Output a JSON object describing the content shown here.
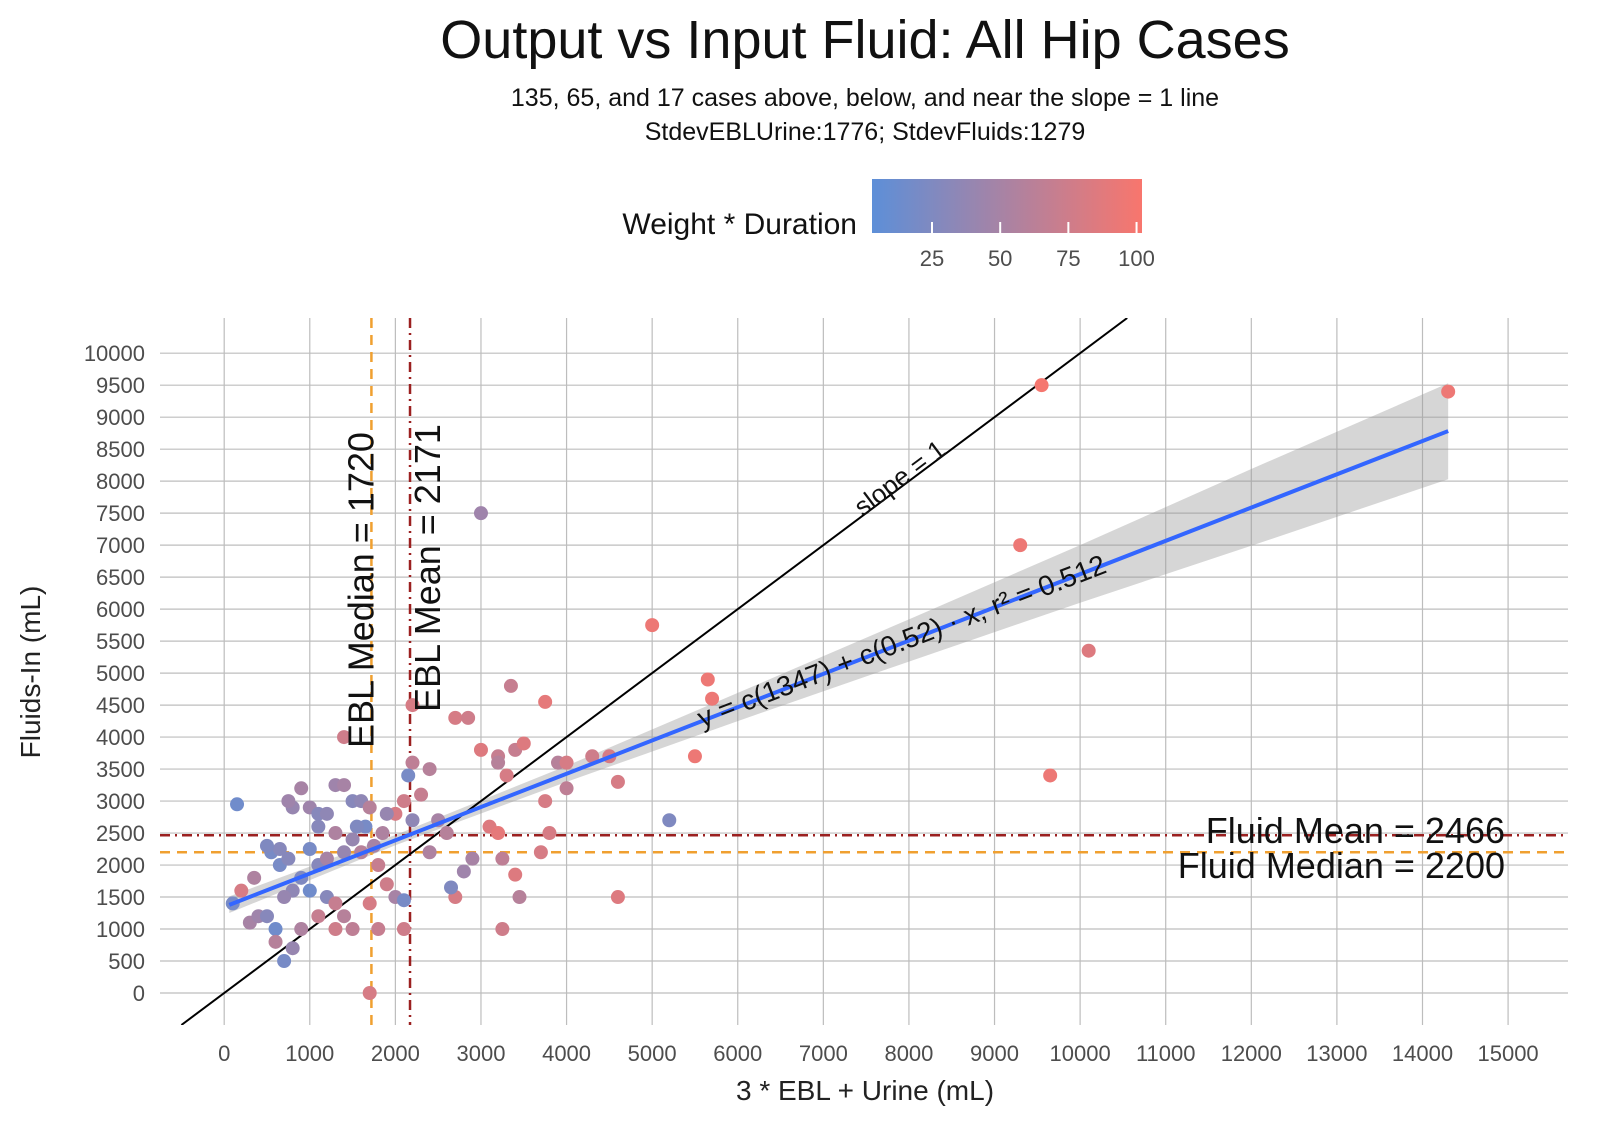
{
  "chart_data": {
    "type": "scatter",
    "title": "Output vs Input Fluid: All Hip Cases",
    "subtitle": [
      "135, 65, and 17 cases above, below, and near the slope = 1 line",
      "StdevEBLUrine:1776; StdevFluids:1279"
    ],
    "x_label": "3 * EBL + Urine (mL)",
    "y_label": "Fluids-In (mL)",
    "xlim": [
      -750,
      15700
    ],
    "ylim": [
      -500,
      10550
    ],
    "xticks": [
      0,
      1000,
      2000,
      3000,
      4000,
      5000,
      6000,
      7000,
      8000,
      9000,
      10000,
      11000,
      12000,
      13000,
      14000,
      15000
    ],
    "yticks": [
      0,
      500,
      1000,
      1500,
      2000,
      2500,
      3000,
      3500,
      4000,
      4500,
      5000,
      5500,
      6000,
      6500,
      7000,
      7500,
      8000,
      8500,
      9000,
      9500,
      10000
    ],
    "grid": true,
    "legend": {
      "title": "Weight * Duration",
      "position": "top",
      "clim": [
        3,
        102
      ],
      "ticks": [
        25,
        50,
        75,
        100
      ],
      "low_color": "#5d8fd8",
      "high_color": "#f8766d"
    },
    "points": {
      "x": [
        150,
        700,
        600,
        550,
        650,
        500,
        800,
        750,
        900,
        1000,
        1100,
        1200,
        1300,
        1400,
        1500,
        1600,
        1700,
        1650,
        1550,
        1300,
        1000,
        1100,
        900,
        800,
        700,
        1000,
        1200,
        1300,
        1400,
        1500,
        1300,
        1100,
        900,
        800,
        600,
        300,
        400,
        500,
        200,
        100,
        350,
        650,
        750,
        1200,
        1400,
        1600,
        1800,
        1900,
        2000,
        2100,
        1700,
        1800,
        2100,
        1700,
        1400,
        2000,
        2100,
        2300,
        2200,
        2150,
        2400,
        2200,
        2500,
        2600,
        2400,
        2700,
        2650,
        2800,
        2900,
        2700,
        2850,
        3000,
        3000,
        3200,
        3400,
        3500,
        3350,
        3300,
        3200,
        3100,
        3200,
        3250,
        3400,
        3450,
        3250,
        3750,
        3750,
        3800,
        3700,
        3900,
        4000,
        4000,
        4300,
        4500,
        4600,
        4600,
        5000,
        5200,
        5500,
        5650,
        5700,
        9300,
        9550,
        9650,
        10100,
        14300,
        1100,
        1500,
        1850,
        1900,
        2200,
        1750
      ],
      "y": [
        2950,
        500,
        1000,
        2200,
        2250,
        2300,
        2900,
        3000,
        3200,
        2900,
        2800,
        2800,
        3250,
        3250,
        3000,
        3000,
        2900,
        2600,
        2600,
        2500,
        2250,
        2000,
        1800,
        1600,
        1500,
        1600,
        1500,
        1400,
        1200,
        1000,
        1000,
        1200,
        1000,
        700,
        800,
        1100,
        1200,
        1200,
        1600,
        1400,
        1800,
        2000,
        2100,
        2100,
        2200,
        2200,
        2000,
        1700,
        1500,
        1450,
        1400,
        1000,
        1000,
        0,
        4000,
        2800,
        3000,
        3100,
        3600,
        3400,
        3500,
        4500,
        2700,
        2500,
        2200,
        1500,
        1650,
        1900,
        2100,
        4300,
        4300,
        7500,
        3800,
        3700,
        3800,
        3900,
        4800,
        3400,
        3600,
        2600,
        2500,
        2100,
        1850,
        1500,
        1000,
        4550,
        3000,
        2500,
        2200,
        3600,
        3200,
        3600,
        3700,
        3700,
        3300,
        1500,
        5750,
        2700,
        3700,
        4900,
        4600,
        7000,
        9500,
        3400,
        5350,
        9400,
        2600,
        2400,
        2500,
        2800,
        2700,
        2300
      ],
      "c": [
        15,
        20,
        15,
        20,
        30,
        25,
        40,
        45,
        50,
        45,
        30,
        35,
        45,
        50,
        30,
        35,
        60,
        20,
        25,
        55,
        20,
        30,
        25,
        35,
        40,
        15,
        30,
        70,
        60,
        65,
        75,
        70,
        55,
        40,
        60,
        50,
        45,
        30,
        80,
        20,
        55,
        20,
        30,
        50,
        40,
        60,
        70,
        75,
        50,
        20,
        80,
        70,
        75,
        80,
        75,
        80,
        75,
        70,
        65,
        20,
        60,
        80,
        50,
        60,
        55,
        80,
        25,
        45,
        50,
        80,
        75,
        45,
        85,
        70,
        70,
        85,
        70,
        80,
        60,
        85,
        90,
        65,
        85,
        60,
        75,
        90,
        80,
        80,
        80,
        60,
        65,
        80,
        75,
        80,
        80,
        85,
        95,
        25,
        95,
        95,
        95,
        95,
        100,
        95,
        85,
        95,
        30,
        40,
        55,
        40,
        35,
        50
      ]
    },
    "fit": {
      "x": [
        60,
        14300
      ],
      "y": [
        1378,
        8783
      ],
      "color": "#3366ff",
      "label": "y = c(1347) + c(0.52) · x, r² = 0.512"
    },
    "ribbon": {
      "x": [
        60,
        2000,
        4000,
        6000,
        8000,
        10000,
        12000,
        14300
      ],
      "lower": [
        1250,
        2310,
        3300,
        4250,
        5180,
        6100,
        6990,
        8030
      ],
      "upper": [
        1510,
        2470,
        3550,
        4690,
        5840,
        7000,
        8190,
        9530
      ]
    },
    "slope_line": {
      "x": [
        -500,
        10550
      ],
      "y": [
        -500,
        10550
      ],
      "label": "slope = 1"
    },
    "vlines": [
      {
        "value": 1720,
        "label": "EBL Median = 1720",
        "color": "#f0a030"
      },
      {
        "value": 2171,
        "label": "EBL Mean = 2171",
        "color": "#9b2020"
      }
    ],
    "hlines": [
      {
        "value": 2466,
        "label": "Fluid Mean = 2466",
        "color": "#9b2020"
      },
      {
        "value": 2200,
        "label": "Fluid Median = 2200",
        "color": "#f0a030"
      }
    ]
  }
}
